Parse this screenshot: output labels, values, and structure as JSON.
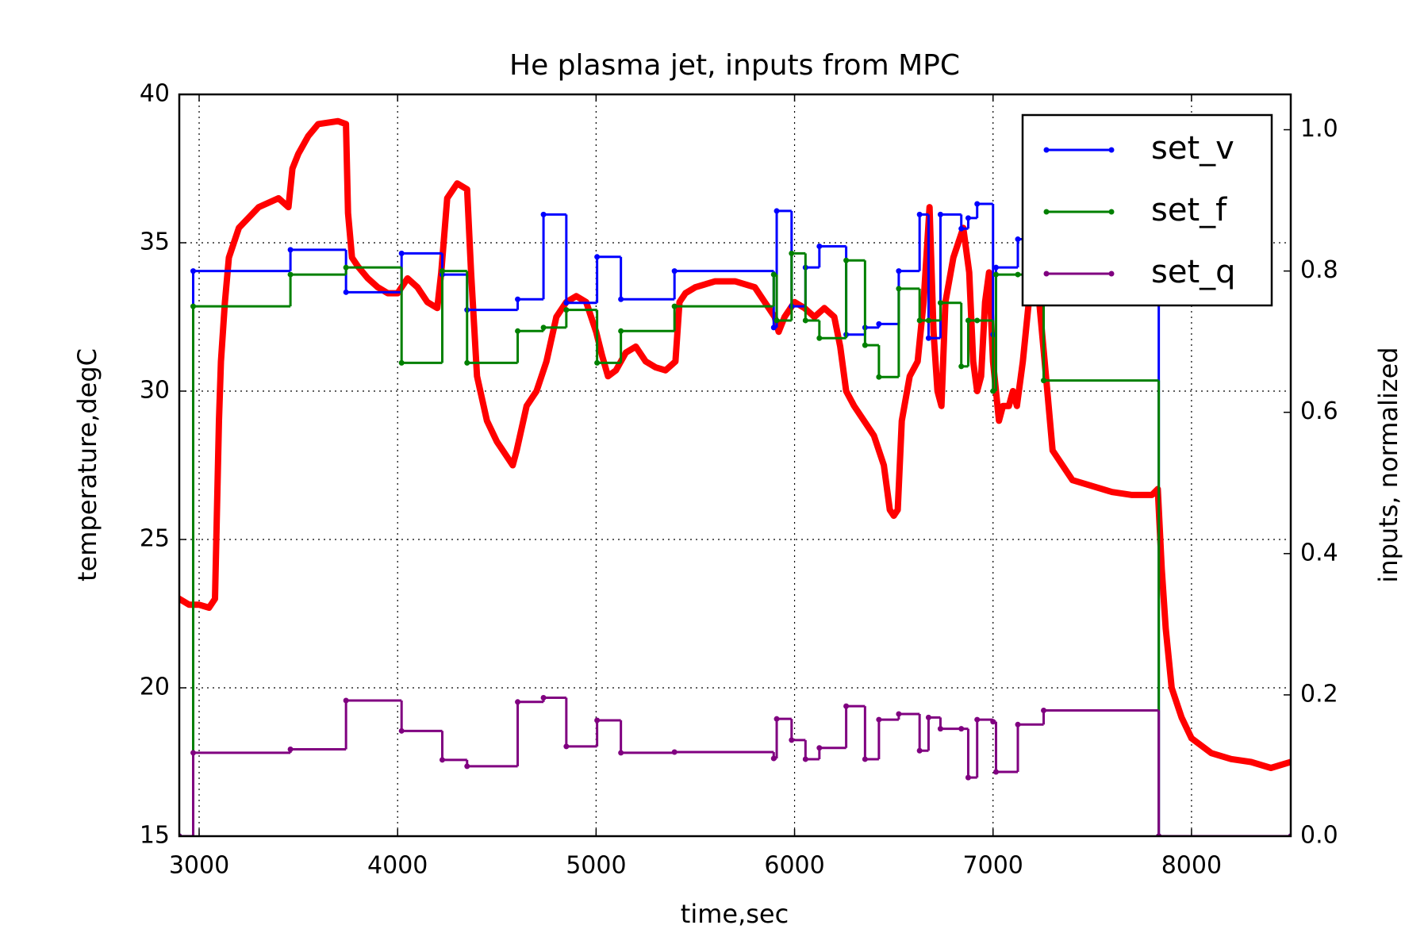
{
  "chart_data": {
    "type": "line",
    "title": "He plasma jet, inputs from MPC",
    "xlabel": "time,sec",
    "ylabel": "temperature,degC",
    "y2label": "inputs, normalized",
    "xlim": [
      2900,
      8500
    ],
    "xticks": [
      3000,
      4000,
      5000,
      6000,
      7000,
      8000
    ],
    "ylim": [
      15,
      40
    ],
    "yticks": [
      15,
      20,
      25,
      30,
      35,
      40
    ],
    "y2lim": [
      0,
      1.05
    ],
    "y2ticks": [
      {
        "value": 0,
        "label": "0.0"
      },
      0.2,
      0.4,
      0.6,
      0.8,
      {
        "value": 1,
        "label": "1.0"
      }
    ],
    "grid": true,
    "legend": "upper right",
    "series": [
      {
        "color": "#ff0000",
        "axis": "y",
        "drawstyle": "default",
        "x": [
          2900,
          2950,
          3000,
          3050,
          3080,
          3090,
          3100,
          3110,
          3130,
          3150,
          3200,
          3300,
          3400,
          3450,
          3470,
          3500,
          3550,
          3600,
          3700,
          3740,
          3750,
          3770,
          3800,
          3850,
          3900,
          3950,
          4000,
          4050,
          4100,
          4150,
          4200,
          4220,
          4250,
          4300,
          4350,
          4370,
          4400,
          4450,
          4500,
          4550,
          4580,
          4600,
          4650,
          4700,
          4750,
          4800,
          4850,
          4900,
          4950,
          5000,
          5030,
          5060,
          5100,
          5150,
          5200,
          5250,
          5300,
          5350,
          5400,
          5420,
          5450,
          5500,
          5600,
          5700,
          5800,
          5900,
          5920,
          5950,
          6000,
          6050,
          6100,
          6150,
          6200,
          6230,
          6260,
          6300,
          6350,
          6400,
          6450,
          6480,
          6500,
          6520,
          6540,
          6580,
          6620,
          6650,
          6680,
          6700,
          6720,
          6740,
          6760,
          6800,
          6850,
          6880,
          6900,
          6920,
          6940,
          6960,
          6980,
          7000,
          7030,
          7050,
          7080,
          7100,
          7120,
          7150,
          7180,
          7200,
          7230,
          7260,
          7300,
          7350,
          7400,
          7500,
          7600,
          7700,
          7800,
          7830,
          7850,
          7870,
          7900,
          7950,
          8000,
          8100,
          8200,
          8300,
          8400,
          8500
        ],
        "values": [
          23,
          22.8,
          22.8,
          22.7,
          23,
          26,
          29,
          31,
          33,
          34.5,
          35.5,
          36.2,
          36.5,
          36.2,
          37.5,
          38,
          38.6,
          39,
          39.1,
          39,
          36,
          34.5,
          34.2,
          33.8,
          33.5,
          33.3,
          33.3,
          33.8,
          33.5,
          33,
          32.8,
          34,
          36.5,
          37,
          36.8,
          34,
          30.5,
          29,
          28.3,
          27.8,
          27.5,
          28,
          29.5,
          30,
          31,
          32.5,
          33,
          33.2,
          33,
          32,
          31.2,
          30.5,
          30.7,
          31.3,
          31.5,
          31,
          30.8,
          30.7,
          31,
          33,
          33.3,
          33.5,
          33.7,
          33.7,
          33.5,
          32.5,
          32,
          32.5,
          33,
          32.8,
          32.5,
          32.8,
          32.5,
          31.5,
          30,
          29.5,
          29,
          28.5,
          27.5,
          26,
          25.8,
          26,
          29,
          30.5,
          31,
          33,
          36.2,
          32,
          30,
          29.5,
          33,
          34.5,
          35.5,
          34,
          31,
          30,
          30.5,
          33,
          34,
          31,
          29,
          29.5,
          29.5,
          30,
          29.5,
          31,
          33,
          33.5,
          33.2,
          31,
          28,
          27.5,
          27,
          26.8,
          26.6,
          26.5,
          26.5,
          26.7,
          24,
          22,
          20,
          19,
          18.3,
          17.8,
          17.6,
          17.5,
          17.3,
          17.5
        ]
      },
      {
        "name": "set_v",
        "color": "#0000ff",
        "axis": "y2",
        "drawstyle": "steps-post",
        "x": [
          2900,
          2970,
          3460,
          3740,
          4020,
          4225,
          4350,
          4605,
          4735,
          4850,
          5005,
          5125,
          5395,
          5895,
          5910,
          5985,
          6055,
          6125,
          6260,
          6355,
          6425,
          6525,
          6630,
          6675,
          6735,
          6840,
          6875,
          6920,
          7000,
          7015,
          7125,
          7255,
          7835,
          8500
        ],
        "values": [
          0,
          0.8,
          0.83,
          0.77,
          0.825,
          0.795,
          0.745,
          0.76,
          0.88,
          0.755,
          0.82,
          0.76,
          0.8,
          0.72,
          0.885,
          0.75,
          0.805,
          0.835,
          0.71,
          0.72,
          0.725,
          0.8,
          0.88,
          0.705,
          0.88,
          0.86,
          0.875,
          0.895,
          0.71,
          0.805,
          0.845,
          0.85,
          0,
          0
        ]
      },
      {
        "name": "set_f",
        "color": "#008000",
        "axis": "y2",
        "drawstyle": "steps-post",
        "x": [
          2900,
          2970,
          3460,
          3740,
          4020,
          4225,
          4350,
          4605,
          4735,
          4850,
          5005,
          5125,
          5395,
          5895,
          5910,
          5985,
          6055,
          6125,
          6260,
          6355,
          6425,
          6525,
          6630,
          6675,
          6735,
          6840,
          6875,
          6920,
          7000,
          7015,
          7125,
          7255,
          7835,
          8500
        ],
        "values": [
          0,
          0.75,
          0.795,
          0.805,
          0.67,
          0.8,
          0.67,
          0.715,
          0.72,
          0.745,
          0.67,
          0.715,
          0.75,
          0.795,
          0.73,
          0.825,
          0.73,
          0.705,
          0.815,
          0.695,
          0.65,
          0.775,
          0.73,
          0.73,
          0.755,
          0.665,
          0.73,
          0.73,
          0.63,
          0.795,
          0.795,
          0.645,
          0,
          0
        ]
      },
      {
        "name": "set_q",
        "color": "#800080",
        "axis": "y2",
        "drawstyle": "steps-post",
        "x": [
          2900,
          2970,
          3460,
          3740,
          4020,
          4225,
          4350,
          4605,
          4735,
          4850,
          5005,
          5125,
          5395,
          5895,
          5910,
          5985,
          6055,
          6125,
          6260,
          6355,
          6425,
          6525,
          6630,
          6675,
          6735,
          6840,
          6875,
          6920,
          7000,
          7015,
          7125,
          7255,
          7835,
          8500
        ],
        "values": [
          0,
          0.118,
          0.123,
          0.192,
          0.149,
          0.108,
          0.099,
          0.19,
          0.196,
          0.127,
          0.164,
          0.118,
          0.119,
          0.11,
          0.166,
          0.136,
          0.109,
          0.125,
          0.184,
          0.109,
          0.165,
          0.173,
          0.121,
          0.168,
          0.152,
          0.152,
          0.083,
          0.165,
          0.162,
          0.091,
          0.158,
          0.178,
          0,
          0
        ]
      }
    ]
  }
}
